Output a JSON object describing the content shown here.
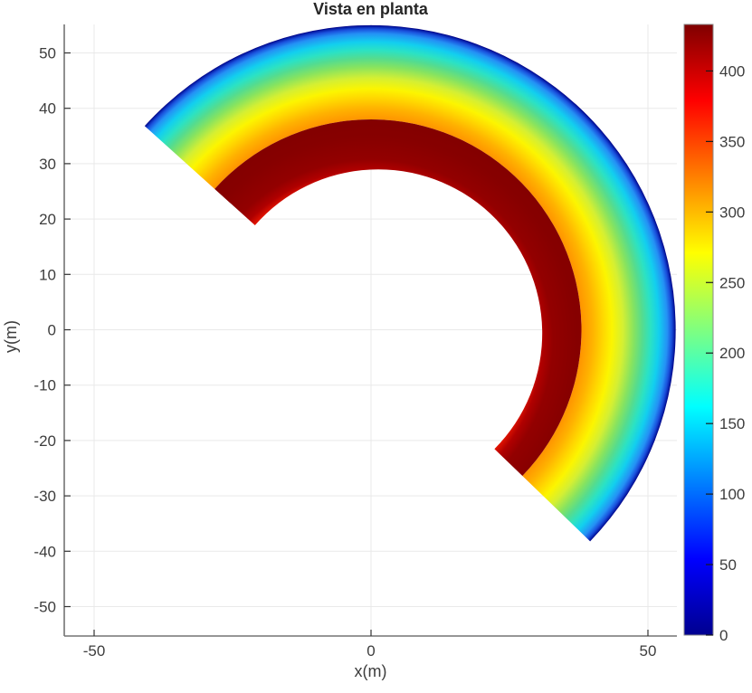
{
  "title": "Vista en planta",
  "axes": {
    "x": {
      "label": "x(m)",
      "tick_values": [
        -50,
        0,
        50
      ],
      "range": [
        -55,
        55
      ]
    },
    "y": {
      "label": "y(m)",
      "tick_values": [
        50,
        40,
        30,
        20,
        10,
        0,
        -10,
        -20,
        -30,
        -40,
        -50
      ],
      "range": [
        -55,
        55
      ]
    },
    "grid": true,
    "grid_color": "#e9e9e9",
    "spine_color": "#737373",
    "tick_color": "#333333",
    "tick_label_color": "#3d3d3d"
  },
  "colorbar": {
    "min": 0,
    "max": 433,
    "tick_values": [
      0,
      50,
      100,
      150,
      200,
      250,
      300,
      350,
      400
    ],
    "border_color": "#8a8a8a",
    "jet_stops": [
      {
        "v": 0,
        "c": "#00008F"
      },
      {
        "v": 54,
        "c": "#0000FF"
      },
      {
        "v": 162,
        "c": "#00FFFF"
      },
      {
        "v": 271,
        "c": "#FFFF00"
      },
      {
        "v": 379,
        "c": "#FF0000"
      },
      {
        "v": 433,
        "c": "#7F0000"
      }
    ]
  },
  "chart_data": {
    "type": "heatmap",
    "title": "Vista en planta",
    "xlabel": "x(m)",
    "ylabel": "y(m)",
    "xlim": [
      -55,
      55
    ],
    "ylim": [
      -55,
      55
    ],
    "grid": true,
    "legend": false,
    "colormap": "jet",
    "value_range": [
      0,
      433
    ],
    "annular_sector": {
      "center_m": [
        0,
        0
      ],
      "inner_radius_m": 30,
      "outer_radius_m": 55,
      "interface_radius_m": 38,
      "start_angle_deg": -44,
      "end_angle_deg": 138,
      "inner_edge_center_offset_m": [
        0,
        -2
      ],
      "inner_edge_radius_m": 29.6
    },
    "radial_profile": [
      {
        "r_m": 30,
        "value": 395
      },
      {
        "r_m": 34,
        "value": 420
      },
      {
        "r_m": 38,
        "value": 433
      },
      {
        "r_m": 38.01,
        "value": 315
      },
      {
        "r_m": 40,
        "value": 297
      },
      {
        "r_m": 42,
        "value": 286
      },
      {
        "r_m": 43.5,
        "value": 272
      },
      {
        "r_m": 45.5,
        "value": 251
      },
      {
        "r_m": 47.5,
        "value": 220
      },
      {
        "r_m": 49,
        "value": 198
      },
      {
        "r_m": 50.5,
        "value": 175
      },
      {
        "r_m": 52,
        "value": 143
      },
      {
        "r_m": 53.5,
        "value": 116
      },
      {
        "r_m": 54.3,
        "value": 88
      },
      {
        "r_m": 54.8,
        "value": 43
      },
      {
        "r_m": 55,
        "value": 0
      }
    ],
    "outer_band_stops": [
      {
        "r_m": 38,
        "color": "#FF9400"
      },
      {
        "r_m": 40,
        "color": "#FFB200"
      },
      {
        "r_m": 42,
        "color": "#FFD900"
      },
      {
        "r_m": 43.5,
        "color": "#FCF500"
      },
      {
        "r_m": 45.5,
        "color": "#D4EF33"
      },
      {
        "r_m": 47.5,
        "color": "#86E360"
      },
      {
        "r_m": 49,
        "color": "#55DC8E"
      },
      {
        "r_m": 50.5,
        "color": "#2BE2C4"
      },
      {
        "r_m": 52,
        "color": "#12CFEF"
      },
      {
        "r_m": 53.5,
        "color": "#2491F5"
      },
      {
        "r_m": 54.3,
        "color": "#1A50DC"
      },
      {
        "r_m": 54.75,
        "color": "#0722AC"
      },
      {
        "r_m": 55,
        "color": "#000083"
      }
    ],
    "inner_band_stops": [
      {
        "r_m": 29.6,
        "color": "#E51400"
      },
      {
        "r_m": 31,
        "color": "#B00000"
      },
      {
        "r_m": 32.8,
        "color": "#930000"
      },
      {
        "r_m": 36.8,
        "color": "#870000"
      },
      {
        "r_m": 40,
        "color": "#830000"
      }
    ]
  }
}
